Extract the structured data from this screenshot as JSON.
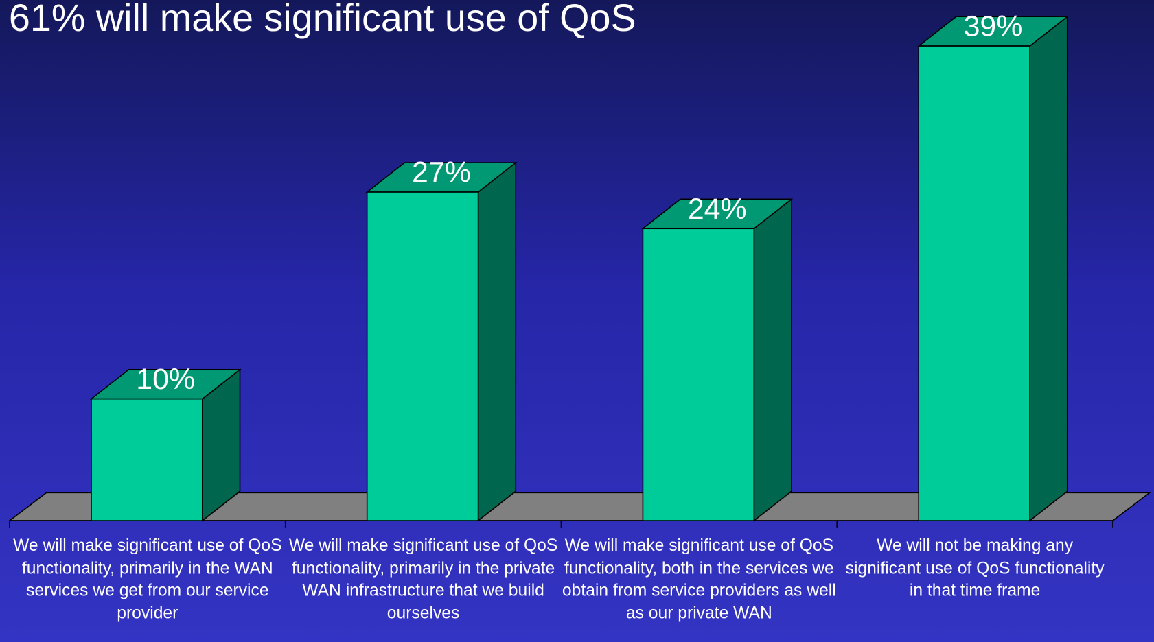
{
  "chart_data": {
    "type": "bar3d",
    "title": "61% will make significant use of QoS",
    "categories": [
      "We will make significant use of QoS functionality, primarily in the WAN services we get from our service provider",
      "We will make significant use of QoS functionality, primarily in the private WAN infrastructure that we build ourselves",
      "We will make significant use of QoS functionality, both in the services we obtain from service providers as well as our private WAN",
      "We will not be making any significant use of QoS functionality in that time frame"
    ],
    "values": [
      10,
      27,
      24,
      39
    ],
    "value_labels": [
      "10%",
      "27%",
      "24%",
      "39%"
    ],
    "color": "#00cc99"
  }
}
